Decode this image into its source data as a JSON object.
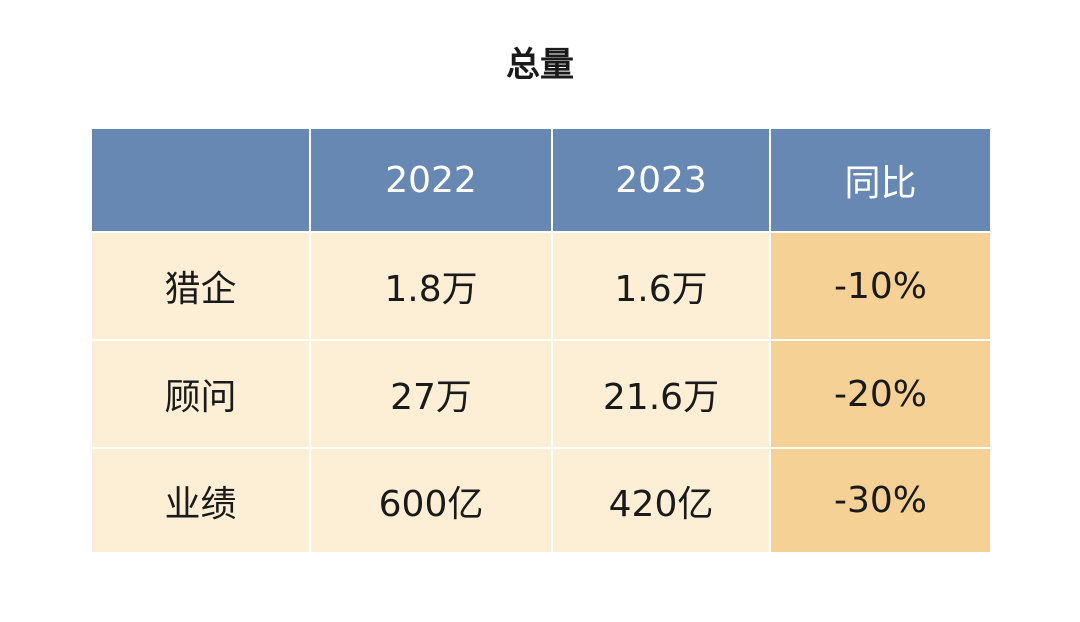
{
  "title": "总量",
  "colors": {
    "header_bg": "#6788b3",
    "cell_bg": "#fdefd5",
    "highlight_bg": "#f6d196"
  },
  "chart_data": {
    "type": "table",
    "title": "总量",
    "columns": [
      "",
      "2022",
      "2023",
      "同比"
    ],
    "rows": [
      {
        "label": "猎企",
        "v2022": "1.8万",
        "v2023": "1.6万",
        "yoy": "-10%"
      },
      {
        "label": "顾问",
        "v2022": "27万",
        "v2023": "21.6万",
        "yoy": "-20%"
      },
      {
        "label": "业绩",
        "v2022": "600亿",
        "v2023": "420亿",
        "yoy": "-30%"
      }
    ]
  }
}
